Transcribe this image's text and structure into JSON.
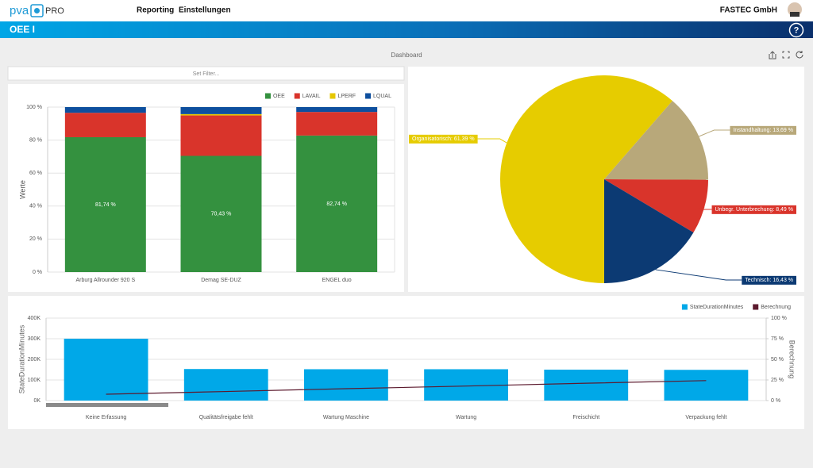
{
  "header": {
    "logo": "pva",
    "logo_suffix": "PRO",
    "nav": [
      "Reporting",
      "Einstellungen"
    ],
    "company": "FASTEC GmbH"
  },
  "title_bar": {
    "title": "OEE I",
    "help": "?"
  },
  "dashboard": {
    "title": "Dashboard",
    "filter": "Set Filter..."
  },
  "chart_data": [
    {
      "type": "bar",
      "stacked": true,
      "y_label": "Werte",
      "categories": [
        "Arburg Allrounder 920 S",
        "Demag SE-DUZ",
        "ENGEL duo"
      ],
      "series": [
        {
          "name": "OEE",
          "color": "#34913f",
          "values": [
            81.74,
            70.43,
            82.74
          ],
          "value_labels": [
            "81,74 %",
            "70,43 %",
            "82,74 %"
          ]
        },
        {
          "name": "LAVAIL",
          "color": "#d9342b",
          "values": [
            14.8,
            24.5,
            14.3
          ]
        },
        {
          "name": "LPERF",
          "color": "#e6c700",
          "values": [
            0,
            0.8,
            0
          ]
        },
        {
          "name": "LQUAL",
          "color": "#0e4f9e",
          "values": [
            3.46,
            4.27,
            2.96
          ]
        }
      ],
      "ylim": [
        0,
        100
      ],
      "yticks": [
        {
          "value": 0,
          "label": "0 %"
        },
        {
          "value": 20,
          "label": "20 %"
        },
        {
          "value": 40,
          "label": "40 %"
        },
        {
          "value": 60,
          "label": "60 %"
        },
        {
          "value": 80,
          "label": "80 %"
        },
        {
          "value": 100,
          "label": "100 %"
        }
      ],
      "grid": true,
      "legend": "top-right"
    },
    {
      "type": "pie",
      "values": [
        61.39,
        13.69,
        8.49,
        16.43
      ],
      "value_labels": [
        "Organisatorisch: 61,39 %",
        "Instandhaltung: 13,69 %",
        "Unbegr. Unterbrechung: 8,49 %",
        "Technisch: 16,43 %"
      ],
      "colors": [
        "#e6cc00",
        "#b8a87a",
        "#d9342b",
        "#0c3a73"
      ]
    },
    {
      "type": "combo",
      "y_label": "StateDurationMinutes",
      "y2_label": "Berechnung",
      "categories": [
        "Keine Erfassung",
        "Qualitätsfreigabe fehlt",
        "Wartung Maschine",
        "Wartung",
        "Freischicht",
        "Verpackung fehlt"
      ],
      "series": [
        {
          "name": "StateDurationMinutes",
          "type": "bar",
          "color": "#00a8e8",
          "values": [
            300000,
            153000,
            152000,
            152000,
            150000,
            149000
          ]
        },
        {
          "name": "Berechnung",
          "type": "line",
          "axis": "y2",
          "color": "#5c1a2e",
          "values": [
            7.7,
            11,
            14.4,
            17.6,
            21,
            24.2
          ]
        }
      ],
      "ylim": [
        0,
        400000
      ],
      "yticks": [
        {
          "value": 0,
          "label": "0K"
        },
        {
          "value": 100000,
          "label": "100K"
        },
        {
          "value": 200000,
          "label": "200K"
        },
        {
          "value": 300000,
          "label": "300K"
        },
        {
          "value": 400000,
          "label": "400K"
        }
      ],
      "y2lim": [
        0,
        100
      ],
      "y2ticks": [
        {
          "value": 0,
          "label": "0 %"
        },
        {
          "value": 25,
          "label": "25 %"
        },
        {
          "value": 50,
          "label": "50 %"
        },
        {
          "value": 75,
          "label": "75 %"
        },
        {
          "value": 100,
          "label": "100 %"
        }
      ],
      "grid": true,
      "legend": "top-right"
    }
  ]
}
